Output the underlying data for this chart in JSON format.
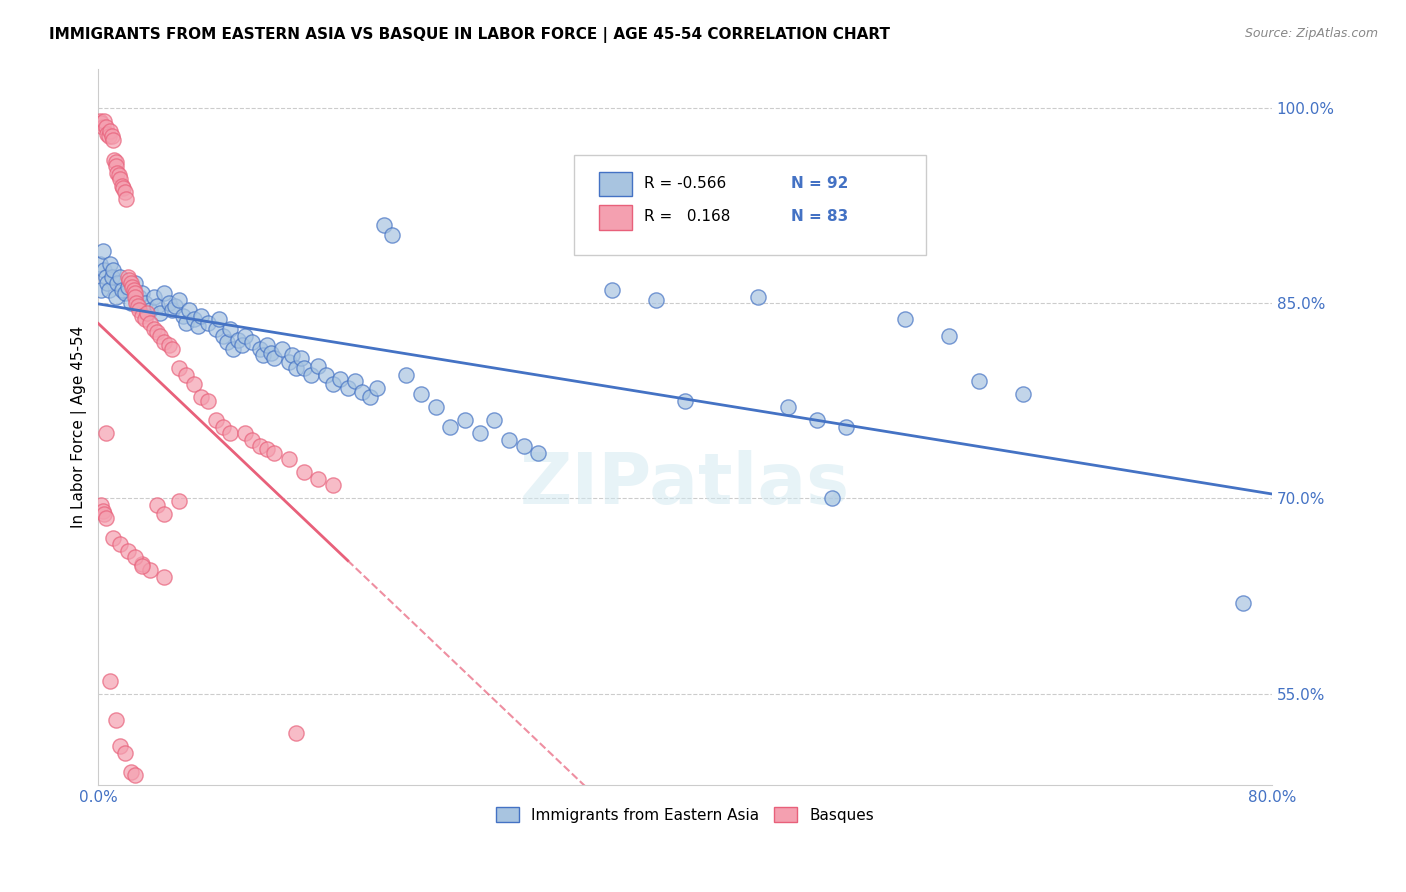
{
  "title": "IMMIGRANTS FROM EASTERN ASIA VS BASQUE IN LABOR FORCE | AGE 45-54 CORRELATION CHART",
  "source": "Source: ZipAtlas.com",
  "ylabel": "In Labor Force | Age 45-54",
  "yticks": [
    0.5,
    0.55,
    0.6,
    0.65,
    0.7,
    0.75,
    0.8,
    0.85,
    0.9,
    0.95,
    1.0
  ],
  "ytick_labels": [
    "",
    "55.0%",
    "",
    "",
    "70.0%",
    "",
    "",
    "85.0%",
    "",
    "",
    "100.0%"
  ],
  "xmin": 0.0,
  "xmax": 0.8,
  "ymin": 0.48,
  "ymax": 1.03,
  "blue_R": -0.566,
  "blue_N": 92,
  "pink_R": 0.168,
  "pink_N": 83,
  "blue_color": "#a8c4e0",
  "pink_color": "#f4a0b0",
  "blue_line_color": "#4472c4",
  "pink_line_color": "#e8607a",
  "blue_scatter": [
    [
      0.001,
      0.88
    ],
    [
      0.002,
      0.86
    ],
    [
      0.003,
      0.89
    ],
    [
      0.004,
      0.875
    ],
    [
      0.005,
      0.87
    ],
    [
      0.006,
      0.865
    ],
    [
      0.007,
      0.86
    ],
    [
      0.008,
      0.88
    ],
    [
      0.009,
      0.87
    ],
    [
      0.01,
      0.875
    ],
    [
      0.012,
      0.855
    ],
    [
      0.013,
      0.865
    ],
    [
      0.015,
      0.87
    ],
    [
      0.016,
      0.86
    ],
    [
      0.018,
      0.858
    ],
    [
      0.02,
      0.862
    ],
    [
      0.022,
      0.85
    ],
    [
      0.025,
      0.865
    ],
    [
      0.028,
      0.855
    ],
    [
      0.03,
      0.858
    ],
    [
      0.032,
      0.85
    ],
    [
      0.035,
      0.845
    ],
    [
      0.038,
      0.855
    ],
    [
      0.04,
      0.848
    ],
    [
      0.042,
      0.842
    ],
    [
      0.045,
      0.858
    ],
    [
      0.048,
      0.85
    ],
    [
      0.05,
      0.845
    ],
    [
      0.052,
      0.848
    ],
    [
      0.055,
      0.852
    ],
    [
      0.058,
      0.84
    ],
    [
      0.06,
      0.835
    ],
    [
      0.062,
      0.845
    ],
    [
      0.065,
      0.838
    ],
    [
      0.068,
      0.832
    ],
    [
      0.07,
      0.84
    ],
    [
      0.075,
      0.835
    ],
    [
      0.08,
      0.83
    ],
    [
      0.082,
      0.838
    ],
    [
      0.085,
      0.825
    ],
    [
      0.088,
      0.82
    ],
    [
      0.09,
      0.83
    ],
    [
      0.092,
      0.815
    ],
    [
      0.095,
      0.822
    ],
    [
      0.098,
      0.818
    ],
    [
      0.1,
      0.825
    ],
    [
      0.105,
      0.82
    ],
    [
      0.11,
      0.815
    ],
    [
      0.112,
      0.81
    ],
    [
      0.115,
      0.818
    ],
    [
      0.118,
      0.812
    ],
    [
      0.12,
      0.808
    ],
    [
      0.125,
      0.815
    ],
    [
      0.13,
      0.805
    ],
    [
      0.132,
      0.81
    ],
    [
      0.135,
      0.8
    ],
    [
      0.138,
      0.808
    ],
    [
      0.14,
      0.8
    ],
    [
      0.145,
      0.795
    ],
    [
      0.15,
      0.802
    ],
    [
      0.155,
      0.795
    ],
    [
      0.16,
      0.788
    ],
    [
      0.165,
      0.792
    ],
    [
      0.17,
      0.785
    ],
    [
      0.175,
      0.79
    ],
    [
      0.18,
      0.782
    ],
    [
      0.185,
      0.778
    ],
    [
      0.19,
      0.785
    ],
    [
      0.195,
      0.91
    ],
    [
      0.2,
      0.902
    ],
    [
      0.21,
      0.795
    ],
    [
      0.22,
      0.78
    ],
    [
      0.23,
      0.77
    ],
    [
      0.24,
      0.755
    ],
    [
      0.25,
      0.76
    ],
    [
      0.26,
      0.75
    ],
    [
      0.27,
      0.76
    ],
    [
      0.28,
      0.745
    ],
    [
      0.29,
      0.74
    ],
    [
      0.3,
      0.735
    ],
    [
      0.35,
      0.86
    ],
    [
      0.38,
      0.852
    ],
    [
      0.4,
      0.775
    ],
    [
      0.45,
      0.855
    ],
    [
      0.47,
      0.77
    ],
    [
      0.49,
      0.76
    ],
    [
      0.5,
      0.7
    ],
    [
      0.51,
      0.755
    ],
    [
      0.55,
      0.838
    ],
    [
      0.58,
      0.825
    ],
    [
      0.6,
      0.79
    ],
    [
      0.63,
      0.78
    ],
    [
      0.78,
      0.62
    ]
  ],
  "pink_scatter": [
    [
      0.001,
      0.99
    ],
    [
      0.002,
      0.988
    ],
    [
      0.003,
      0.985
    ],
    [
      0.004,
      0.99
    ],
    [
      0.005,
      0.985
    ],
    [
      0.006,
      0.98
    ],
    [
      0.007,
      0.978
    ],
    [
      0.008,
      0.982
    ],
    [
      0.009,
      0.978
    ],
    [
      0.01,
      0.975
    ],
    [
      0.011,
      0.96
    ],
    [
      0.012,
      0.958
    ],
    [
      0.012,
      0.955
    ],
    [
      0.013,
      0.95
    ],
    [
      0.014,
      0.948
    ],
    [
      0.015,
      0.945
    ],
    [
      0.016,
      0.94
    ],
    [
      0.017,
      0.938
    ],
    [
      0.018,
      0.935
    ],
    [
      0.019,
      0.93
    ],
    [
      0.02,
      0.87
    ],
    [
      0.021,
      0.868
    ],
    [
      0.022,
      0.865
    ],
    [
      0.023,
      0.862
    ],
    [
      0.024,
      0.86
    ],
    [
      0.025,
      0.858
    ],
    [
      0.025,
      0.855
    ],
    [
      0.026,
      0.85
    ],
    [
      0.027,
      0.848
    ],
    [
      0.028,
      0.845
    ],
    [
      0.03,
      0.84
    ],
    [
      0.032,
      0.838
    ],
    [
      0.033,
      0.842
    ],
    [
      0.035,
      0.835
    ],
    [
      0.038,
      0.83
    ],
    [
      0.04,
      0.828
    ],
    [
      0.042,
      0.825
    ],
    [
      0.045,
      0.82
    ],
    [
      0.048,
      0.818
    ],
    [
      0.05,
      0.815
    ],
    [
      0.055,
      0.8
    ],
    [
      0.06,
      0.795
    ],
    [
      0.065,
      0.788
    ],
    [
      0.07,
      0.778
    ],
    [
      0.075,
      0.775
    ],
    [
      0.08,
      0.76
    ],
    [
      0.085,
      0.755
    ],
    [
      0.09,
      0.75
    ],
    [
      0.1,
      0.75
    ],
    [
      0.105,
      0.745
    ],
    [
      0.11,
      0.74
    ],
    [
      0.115,
      0.738
    ],
    [
      0.12,
      0.735
    ],
    [
      0.13,
      0.73
    ],
    [
      0.14,
      0.72
    ],
    [
      0.15,
      0.715
    ],
    [
      0.16,
      0.71
    ],
    [
      0.008,
      0.56
    ],
    [
      0.012,
      0.53
    ],
    [
      0.015,
      0.51
    ],
    [
      0.018,
      0.505
    ],
    [
      0.022,
      0.49
    ],
    [
      0.025,
      0.488
    ],
    [
      0.03,
      0.65
    ],
    [
      0.035,
      0.645
    ],
    [
      0.045,
      0.64
    ],
    [
      0.002,
      0.695
    ],
    [
      0.003,
      0.69
    ],
    [
      0.004,
      0.688
    ],
    [
      0.005,
      0.685
    ],
    [
      0.01,
      0.67
    ],
    [
      0.015,
      0.665
    ],
    [
      0.02,
      0.66
    ],
    [
      0.025,
      0.655
    ],
    [
      0.03,
      0.648
    ],
    [
      0.04,
      0.695
    ],
    [
      0.045,
      0.688
    ],
    [
      0.005,
      0.75
    ],
    [
      0.055,
      0.698
    ],
    [
      0.135,
      0.52
    ]
  ],
  "watermark": "ZIPatlas",
  "legend_blue_label": "Immigrants from Eastern Asia",
  "legend_pink_label": "Basques",
  "grid_yticks": [
    0.55,
    0.7,
    0.85,
    1.0
  ],
  "title_fontsize": 11,
  "axis_label_color": "#4472c4"
}
